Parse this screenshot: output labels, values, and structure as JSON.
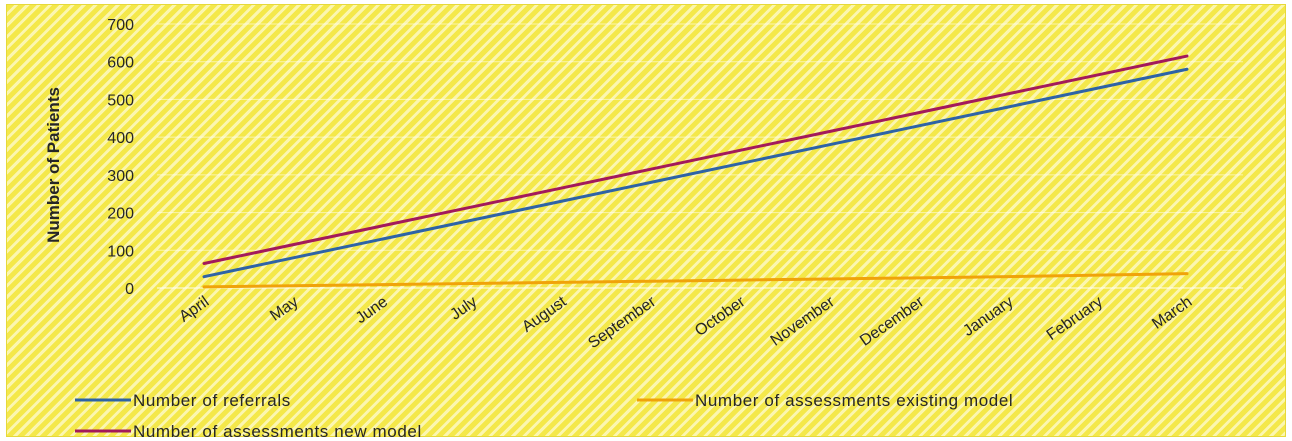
{
  "chart_data": {
    "type": "line",
    "title": "",
    "xlabel": "",
    "ylabel": "Number of Patients",
    "ylim": [
      0,
      700
    ],
    "yticks": [
      0,
      100,
      200,
      300,
      400,
      500,
      600,
      700
    ],
    "grid": true,
    "legend_position": "bottom",
    "categories": [
      "April",
      "May",
      "June",
      "July",
      "August",
      "September",
      "October",
      "November",
      "December",
      "January",
      "February",
      "March"
    ],
    "series": [
      {
        "name": "Number of referrals",
        "color": "#2e63a6",
        "values": [
          30,
          80,
          130,
          180,
          230,
          280,
          330,
          380,
          430,
          480,
          530,
          580
        ]
      },
      {
        "name": "Number of assessments existing model",
        "color": "#f0a30a",
        "values": [
          3,
          6,
          9,
          12,
          15,
          18,
          21,
          24,
          27,
          30,
          34,
          38
        ]
      },
      {
        "name": "Number of assessments new model",
        "color": "#a3195b",
        "values": [
          65,
          115,
          165,
          215,
          265,
          315,
          365,
          415,
          465,
          515,
          565,
          615
        ]
      }
    ]
  }
}
